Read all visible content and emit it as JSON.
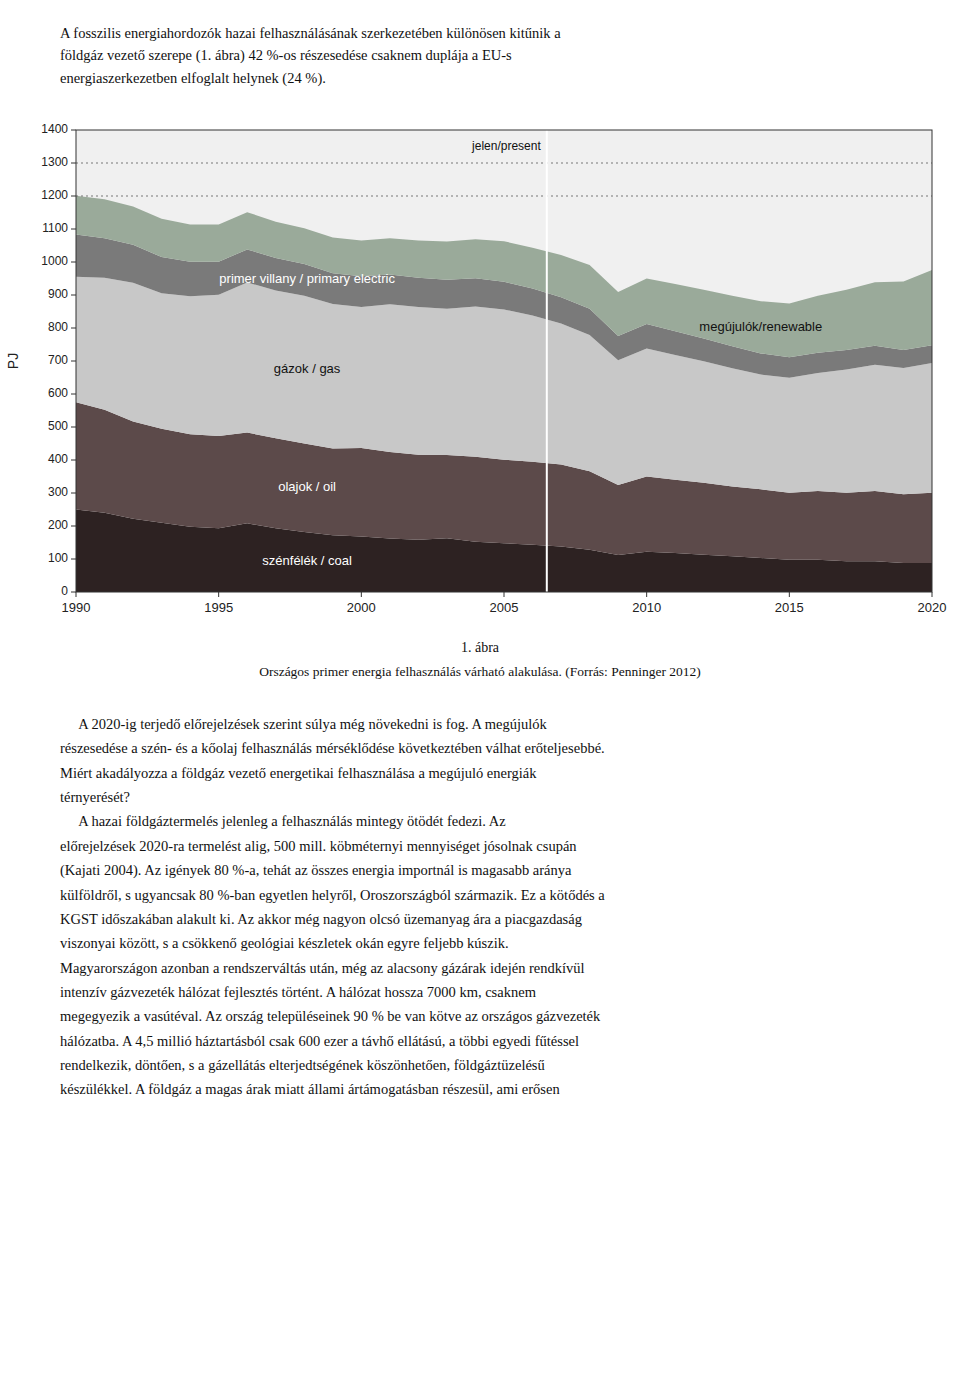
{
  "header_lines": [
    "A fosszilis energiahordozók hazai felhasználásának szerkezetében különösen kitűnik a",
    "földgáz vezető szerepe (1. ábra) 42 %-os részesedése csaknem duplája a EU-s",
    "energiaszerkezetben elfoglalt helynek (24 %)."
  ],
  "chart_data": {
    "type": "area",
    "stacked": true,
    "grid": false,
    "ylabel": "PJ",
    "x": [
      1990,
      1991,
      1992,
      1993,
      1994,
      1995,
      1996,
      1997,
      1998,
      1999,
      2000,
      2001,
      2002,
      2003,
      2004,
      2005,
      2006,
      2007,
      2008,
      2009,
      2010,
      2011,
      2012,
      2013,
      2014,
      2015,
      2016,
      2017,
      2018,
      2019,
      2020
    ],
    "xlim": [
      1990,
      2020
    ],
    "xticks": [
      1990,
      1995,
      2000,
      2005,
      2010,
      2015,
      2020
    ],
    "ylim": [
      0,
      1400
    ],
    "yticks": [
      0,
      100,
      200,
      300,
      400,
      500,
      600,
      700,
      800,
      900,
      1000,
      1100,
      1200,
      1300,
      1400
    ],
    "series": [
      {
        "name": "szénfélék / coal",
        "color": "#2d2222",
        "values": [
          250,
          240,
          222,
          210,
          198,
          193,
          208,
          193,
          182,
          172,
          168,
          162,
          158,
          163,
          152,
          148,
          143,
          138,
          128,
          112,
          122,
          118,
          113,
          108,
          103,
          98,
          98,
          93,
          93,
          88,
          88
        ]
      },
      {
        "name": "olajok / oil",
        "color": "#5c4a4a",
        "values": [
          325,
          312,
          295,
          285,
          280,
          280,
          275,
          273,
          268,
          263,
          268,
          262,
          258,
          252,
          258,
          253,
          252,
          248,
          238,
          212,
          228,
          222,
          218,
          212,
          208,
          203,
          208,
          208,
          213,
          208,
          213
        ]
      },
      {
        "name": "gázok / gas",
        "color": "#c8c8c8",
        "values": [
          380,
          400,
          420,
          410,
          418,
          428,
          455,
          448,
          448,
          438,
          428,
          448,
          448,
          443,
          455,
          455,
          443,
          428,
          413,
          378,
          388,
          378,
          368,
          358,
          348,
          348,
          358,
          373,
          383,
          383,
          393
        ]
      },
      {
        "name": "primer villany / primary electric",
        "color": "#7a7a7a",
        "values": [
          128,
          120,
          115,
          110,
          105,
          100,
          100,
          98,
          96,
          93,
          93,
          90,
          88,
          88,
          86,
          84,
          82,
          79,
          79,
          74,
          74,
          72,
          69,
          67,
          64,
          62,
          61,
          59,
          57,
          54,
          54
        ]
      },
      {
        "name": "megújulók/renewable",
        "color": "#9aaa9a",
        "values": [
          118,
          118,
          116,
          116,
          113,
          113,
          113,
          110,
          108,
          108,
          108,
          110,
          113,
          116,
          118,
          123,
          123,
          128,
          133,
          133,
          138,
          143,
          148,
          153,
          158,
          163,
          173,
          183,
          193,
          208,
          228
        ]
      }
    ],
    "present_line": {
      "x": 2006.5,
      "label": "jelen/present"
    },
    "reference_lines": [
      {
        "y": 1300
      },
      {
        "y": 1200
      }
    ]
  },
  "caption": "1. ábra",
  "caption_subtitle": "Országos primer energia felhasználás várható alakulása. (Forrás: Penninger 2012)",
  "body_paragraphs": [
    "     A 2020-ig terjedő előrejelzések szerint súlya még növekedni is fog. A megújulók\nrészesedése a szén- és a kőolaj felhasználás mérséklődése következtében válhat erőteljesebbé.\nMiért akadályozza a földgáz vezető energetikai felhasználása a megújuló energiák\ntérnyerését?",
    "     A hazai földgáztermelés jelenleg a felhasználás mintegy ötödét fedezi. Az\nelőrejelzések 2020-ra termelést alig, 500 mill. köbméternyi mennyiséget jósolnak csupán\n(Kajati 2004). Az igények 80 %-a, tehát az összes energia importnál is magasabb aránya\nkülföldről, s ugyancsak 80 %-ban egyetlen helyről, Oroszországból származik. Ez a kötődés a\nKGST időszakában alakult ki. Az akkor még nagyon olcsó üzemanyag ára a piacgazdaság\nviszonyai között, s a csökkenő geológiai készletek okán egyre feljebb kúszik.\nMagyarországon azonban a rendszerváltás után, még az alacsony gázárak idején rendkívül\nintenzív gázvezeték hálózat fejlesztés történt. A hálózat hossza 7000 km, csaknem\nmegegyezik a vasútéval. Az ország településeinek 90 % be van kötve az országos gázvezeték\nhálózatba. A 4,5 millió háztartásból csak 600 ezer a távhő ellátású, a többi egyedi fűtéssel\nrendelkezik, döntően, s a gázellátás elterjedtségének köszönhetően, földgáztüzelésű\nkészülékkel. A földgáz a magas árak miatt állami ártámogatásban részesül, ami erősen"
  ]
}
